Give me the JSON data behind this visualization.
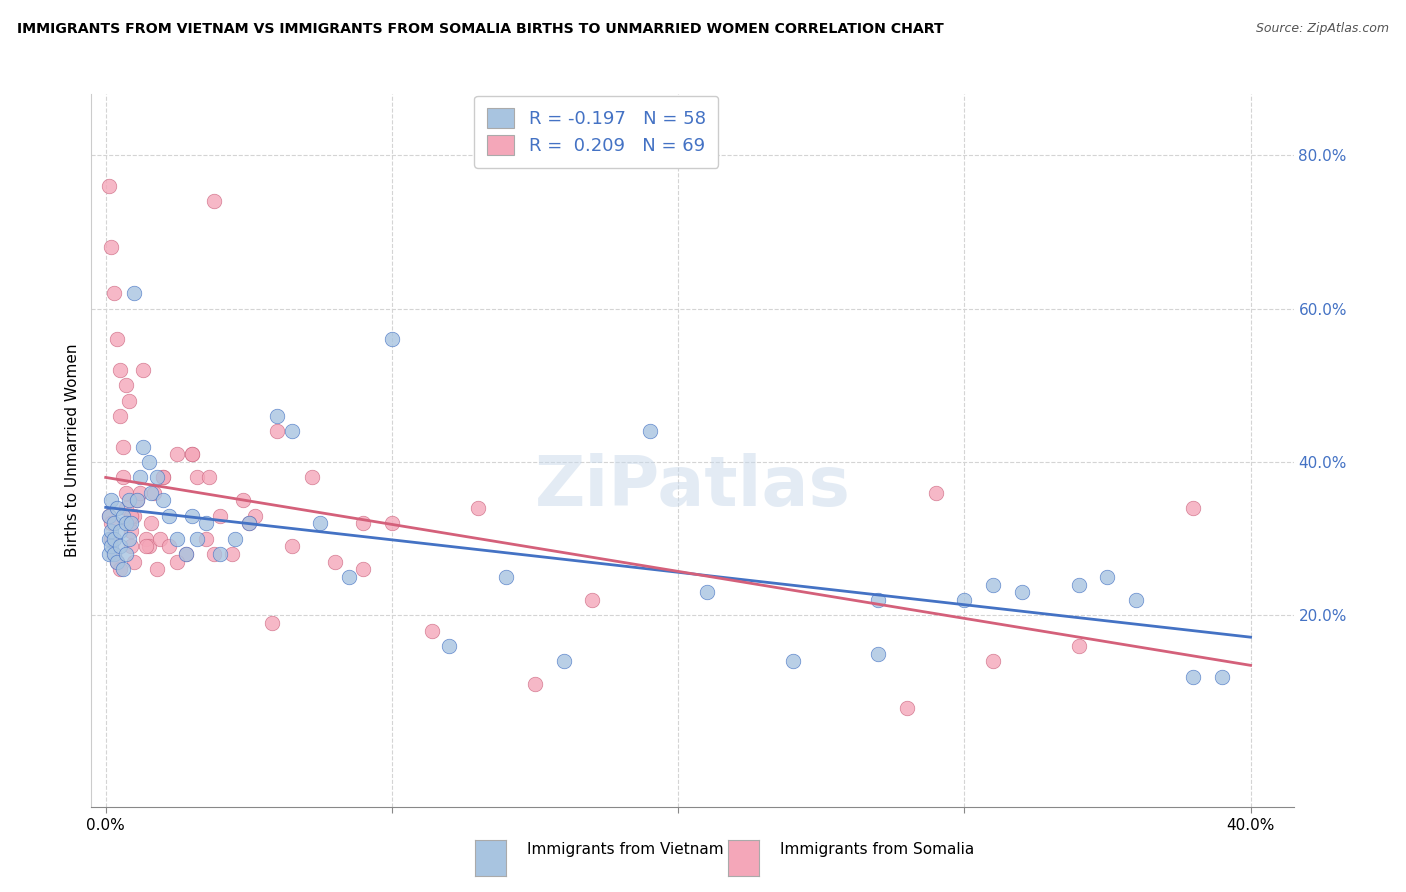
{
  "title": "IMMIGRANTS FROM VIETNAM VS IMMIGRANTS FROM SOMALIA BIRTHS TO UNMARRIED WOMEN CORRELATION CHART",
  "source": "Source: ZipAtlas.com",
  "ylabel": "Births to Unmarried Women",
  "xlabel_vietnam": "Immigrants from Vietnam",
  "xlabel_somalia": "Immigrants from Somalia",
  "color_vietnam": "#a8c4e0",
  "color_somalia": "#f4a7b9",
  "color_line_vietnam": "#4472c4",
  "color_line_somalia": "#d4607a",
  "R_vietnam": -0.197,
  "N_vietnam": 58,
  "R_somalia": 0.209,
  "N_somalia": 69,
  "xlim": [
    -0.005,
    0.415
  ],
  "ylim": [
    -0.05,
    0.88
  ],
  "vietnam_x": [
    0.001,
    0.001,
    0.001,
    0.002,
    0.002,
    0.002,
    0.003,
    0.003,
    0.003,
    0.004,
    0.004,
    0.005,
    0.005,
    0.006,
    0.006,
    0.007,
    0.007,
    0.008,
    0.008,
    0.009,
    0.01,
    0.011,
    0.012,
    0.013,
    0.015,
    0.016,
    0.018,
    0.02,
    0.022,
    0.025,
    0.028,
    0.03,
    0.032,
    0.035,
    0.04,
    0.045,
    0.05,
    0.06,
    0.065,
    0.075,
    0.085,
    0.1,
    0.12,
    0.14,
    0.16,
    0.19,
    0.21,
    0.24,
    0.27,
    0.3,
    0.32,
    0.34,
    0.36,
    0.38,
    0.27,
    0.31,
    0.35,
    0.39
  ],
  "vietnam_y": [
    0.33,
    0.3,
    0.28,
    0.35,
    0.31,
    0.29,
    0.32,
    0.28,
    0.3,
    0.34,
    0.27,
    0.31,
    0.29,
    0.33,
    0.26,
    0.32,
    0.28,
    0.35,
    0.3,
    0.32,
    0.62,
    0.35,
    0.38,
    0.42,
    0.4,
    0.36,
    0.38,
    0.35,
    0.33,
    0.3,
    0.28,
    0.33,
    0.3,
    0.32,
    0.28,
    0.3,
    0.32,
    0.46,
    0.44,
    0.32,
    0.25,
    0.56,
    0.16,
    0.25,
    0.14,
    0.44,
    0.23,
    0.14,
    0.15,
    0.22,
    0.23,
    0.24,
    0.22,
    0.12,
    0.22,
    0.24,
    0.25,
    0.12
  ],
  "somalia_x": [
    0.001,
    0.001,
    0.002,
    0.002,
    0.002,
    0.003,
    0.003,
    0.004,
    0.004,
    0.005,
    0.005,
    0.005,
    0.006,
    0.006,
    0.007,
    0.007,
    0.007,
    0.008,
    0.008,
    0.009,
    0.009,
    0.01,
    0.01,
    0.011,
    0.012,
    0.013,
    0.014,
    0.015,
    0.016,
    0.017,
    0.018,
    0.019,
    0.02,
    0.022,
    0.025,
    0.028,
    0.03,
    0.032,
    0.035,
    0.038,
    0.04,
    0.044,
    0.048,
    0.052,
    0.058,
    0.065,
    0.072,
    0.08,
    0.09,
    0.1,
    0.114,
    0.13,
    0.15,
    0.17,
    0.038,
    0.014,
    0.009,
    0.02,
    0.025,
    0.03,
    0.036,
    0.05,
    0.06,
    0.09,
    0.28,
    0.29,
    0.31,
    0.34,
    0.38
  ],
  "somalia_y": [
    0.33,
    0.76,
    0.68,
    0.32,
    0.3,
    0.62,
    0.28,
    0.56,
    0.27,
    0.52,
    0.46,
    0.26,
    0.42,
    0.38,
    0.36,
    0.5,
    0.34,
    0.32,
    0.48,
    0.31,
    0.29,
    0.33,
    0.27,
    0.35,
    0.36,
    0.52,
    0.3,
    0.29,
    0.32,
    0.36,
    0.26,
    0.3,
    0.38,
    0.29,
    0.41,
    0.28,
    0.41,
    0.38,
    0.3,
    0.28,
    0.33,
    0.28,
    0.35,
    0.33,
    0.19,
    0.29,
    0.38,
    0.27,
    0.26,
    0.32,
    0.18,
    0.34,
    0.11,
    0.22,
    0.74,
    0.29,
    0.33,
    0.38,
    0.27,
    0.41,
    0.38,
    0.32,
    0.44,
    0.32,
    0.08,
    0.36,
    0.14,
    0.16,
    0.34
  ]
}
